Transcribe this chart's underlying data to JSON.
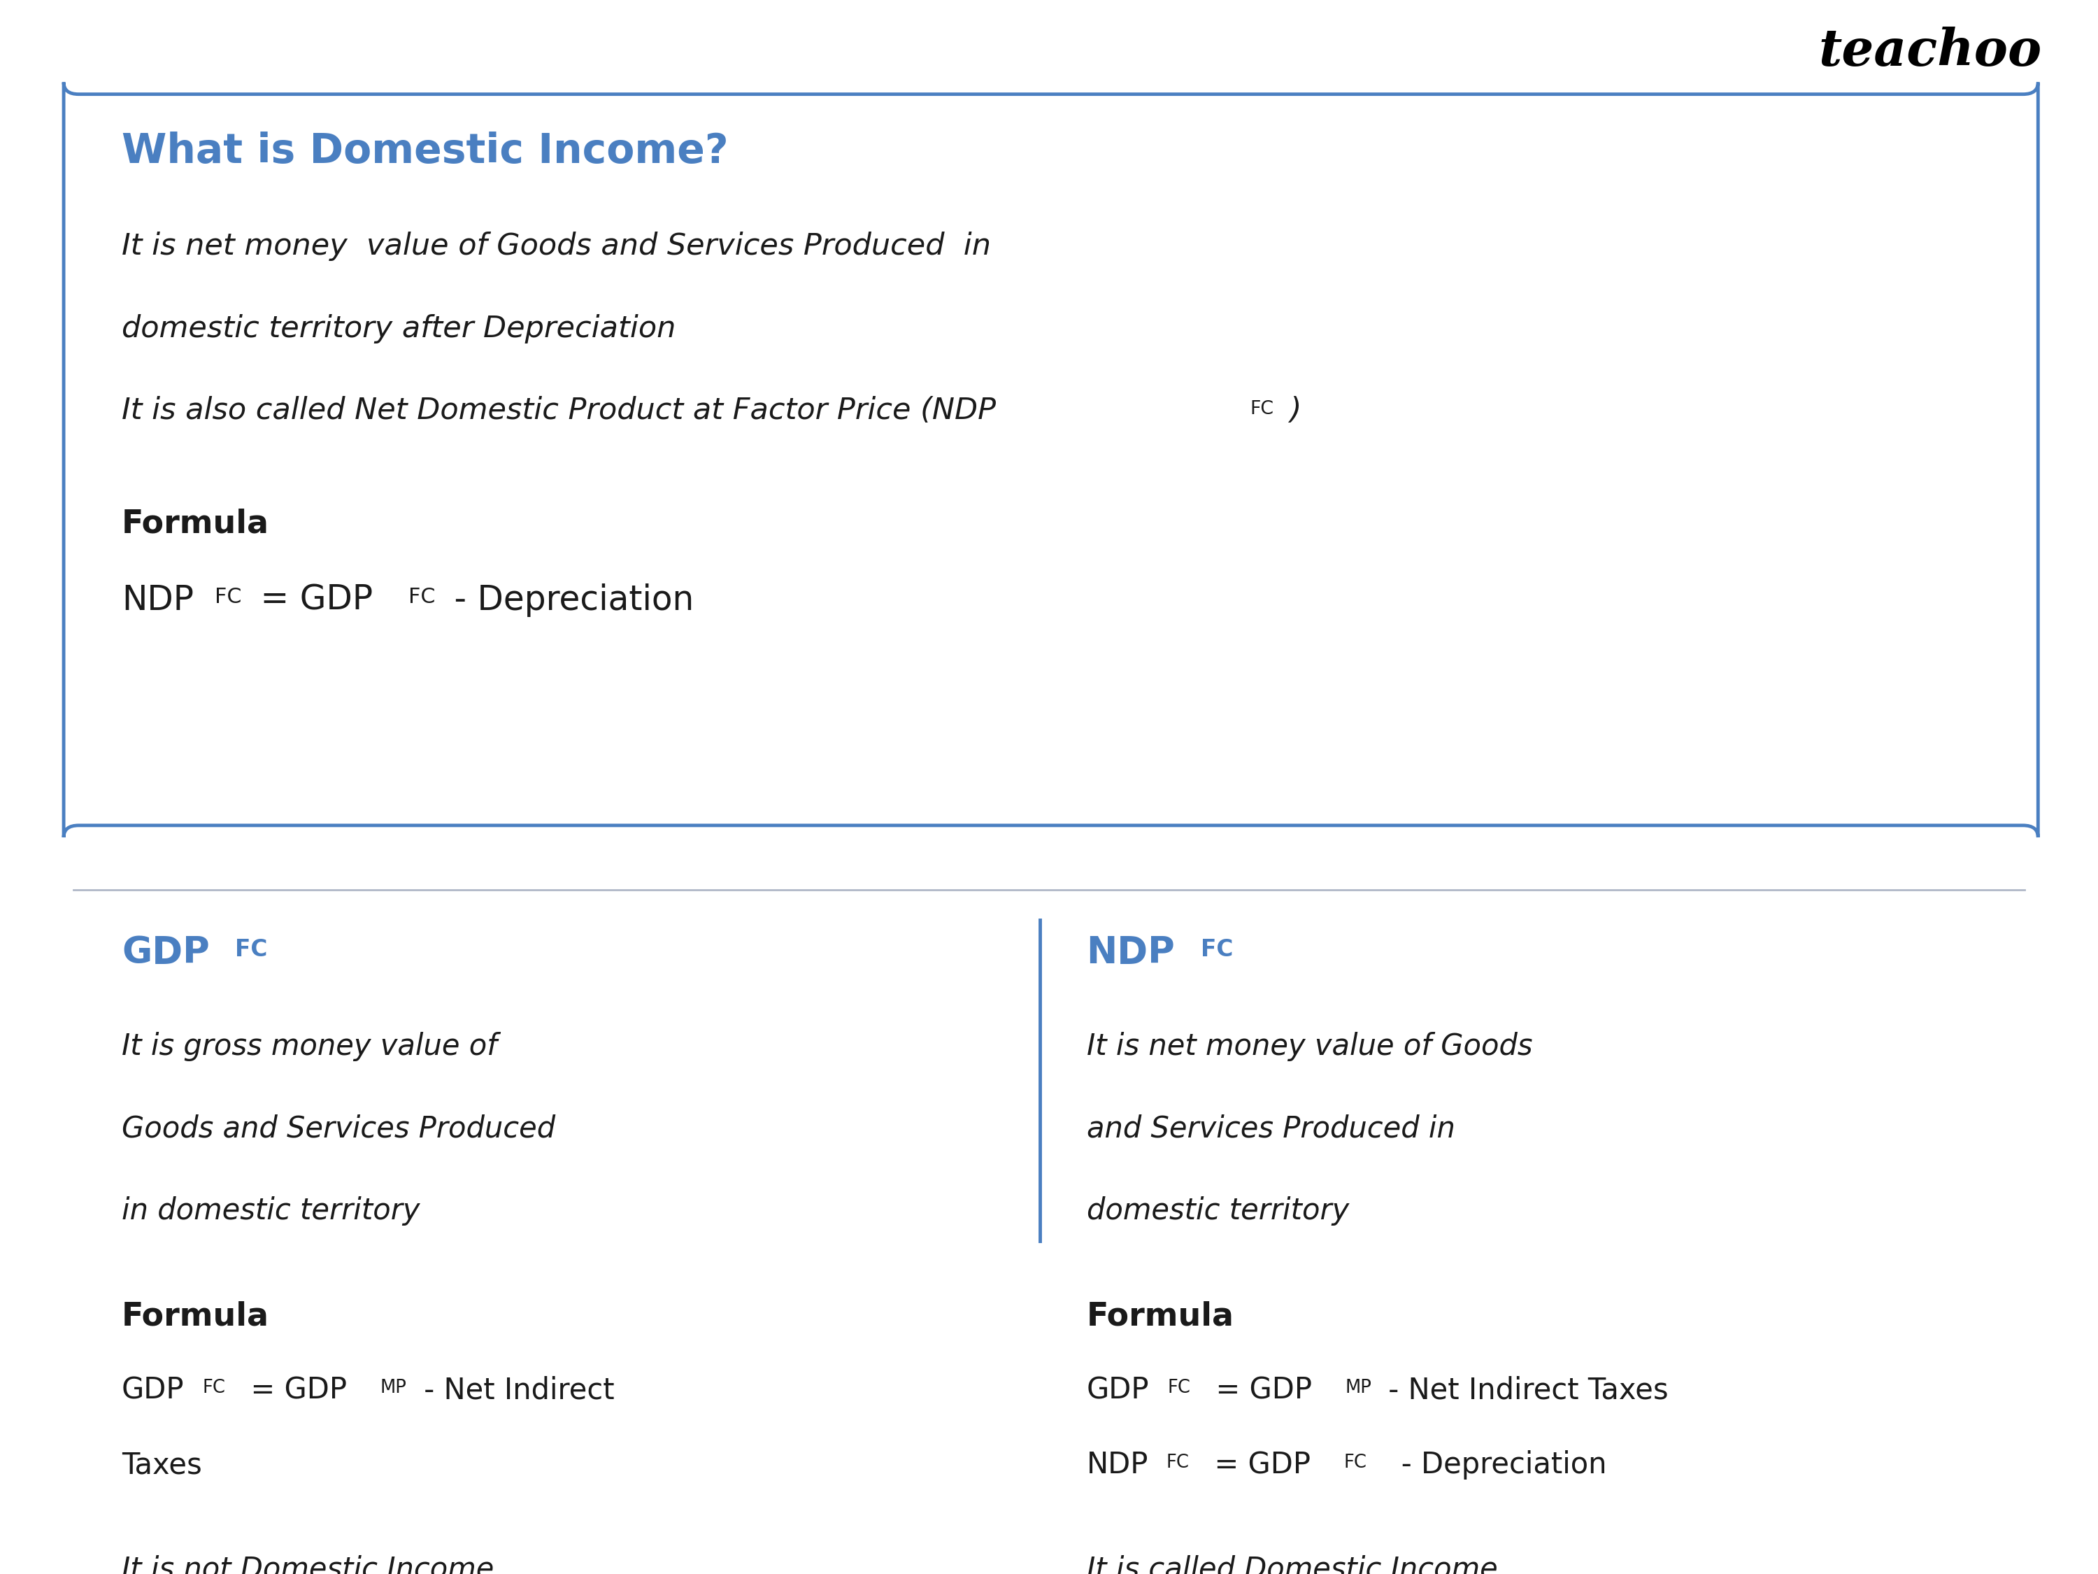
{
  "bg_color": "#ffffff",
  "blue_color": "#4a7fc1",
  "black_color": "#1a1a1a",
  "title": "What is Domestic Income?",
  "top_desc1": "It is net money  value of Goods and Services Produced  in",
  "top_desc2": "domestic territory after Depreciation",
  "top_desc3": "It is also called Net Domestic Product at Factor Price (NDP",
  "top_desc3b": "FC",
  "top_desc3c": " )",
  "formula_label": "Formula",
  "formula_eq_parts": [
    "NDP",
    "FC",
    " = GDP",
    "FC",
    " - Depreciation"
  ],
  "left_heading_parts": [
    "GDP",
    "FC"
  ],
  "left_desc": [
    "It is gross money value of",
    "Goods and Services Produced",
    "in domestic territory"
  ],
  "left_formula_label": "Formula",
  "left_f1_parts": [
    "GDP",
    "FC",
    "  = GDP",
    "MP",
    " - Net Indirect"
  ],
  "left_f2": "Taxes",
  "left_note": "It is not Domestic Income",
  "right_heading_parts": [
    "NDP",
    "FC"
  ],
  "right_desc": [
    "It is net money value of Goods",
    "and Services Produced in",
    "domestic territory"
  ],
  "right_formula_label": "Formula",
  "right_f1_parts": [
    "GDP",
    "FC",
    "  = GDP",
    "MP",
    " - Net Indirect Taxes"
  ],
  "right_f2_parts": [
    "NDP",
    "FC",
    "  = GDP",
    "FC",
    "   - Depreciation"
  ],
  "right_note": "It is called Domestic Income",
  "teachoo_text": "teachoo"
}
